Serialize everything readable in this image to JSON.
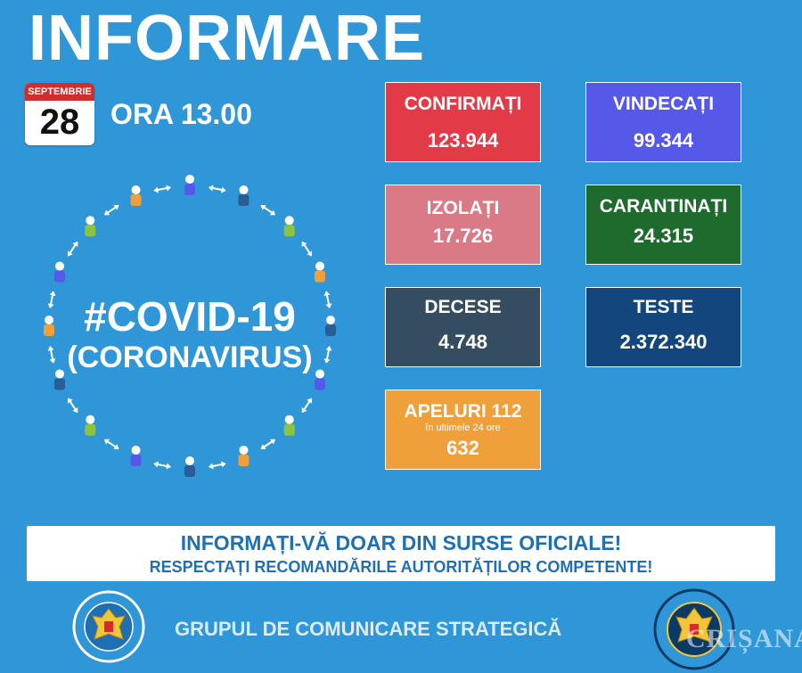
{
  "header": {
    "title": "INFORMARE"
  },
  "calendar": {
    "month": "SEPTEMBRIE",
    "day": "28"
  },
  "time_label": "ORA 13.00",
  "covid": {
    "hashtag": "#COVID-19",
    "sub": "(CORONAVIRUS)"
  },
  "stats": {
    "confirmati": {
      "label": "CONFIRMAȚI",
      "value": "123.944",
      "color": "#e23b47"
    },
    "vindecati": {
      "label": "VINDECAȚI",
      "value": "99.344",
      "color": "#5659e8"
    },
    "izolati": {
      "label": "IZOLAȚI",
      "value": "17.726",
      "color": "#d97a86"
    },
    "carantinati": {
      "label": "CARANTINAȚI",
      "value": "24.315",
      "color": "#1e6b2d"
    },
    "decese": {
      "label": "DECESE",
      "value": "4.748",
      "color": "#354d60"
    },
    "teste": {
      "label": "TESTE",
      "value": "2.372.340",
      "color": "#13467d"
    },
    "apeluri": {
      "label": "APELURI 112",
      "sublabel": "în ultimele 24 ore",
      "value": "632",
      "color": "#f0a03a"
    }
  },
  "notice": {
    "line1": "INFORMAȚI-VĂ DOAR DIN SURSE OFICIALE!",
    "line2": "RESPECTAȚI RECOMANDĂRILE AUTORITĂȚILOR COMPETENTE!"
  },
  "footer": {
    "text": "GRUPUL DE COMUNICARE STRATEGICĂ",
    "left_logo": "GUVERNUL ROMÂNIEI",
    "right_logo": "DEPARTAMENTUL PENTRU SITUAȚII DE URGENȚĂ",
    "right_logo_sub": "M.A.I.",
    "watermark": "CRIȘANA"
  }
}
